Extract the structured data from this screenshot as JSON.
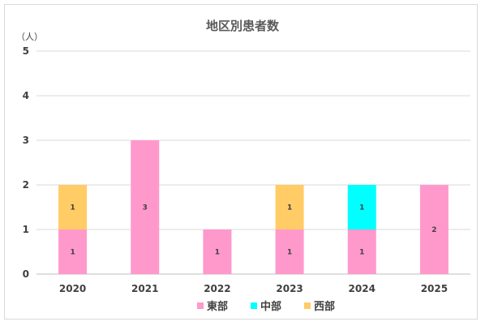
{
  "chart_data": {
    "type": "bar",
    "stacked": true,
    "title": "地区別患者数",
    "unit_label": "（人）",
    "categories": [
      "2020",
      "2021",
      "2022",
      "2023",
      "2024",
      "2025"
    ],
    "series": [
      {
        "name": "東部",
        "color": "#ff99cc",
        "values": [
          1,
          3,
          1,
          1,
          1,
          2
        ]
      },
      {
        "name": "中部",
        "color": "#00ffff",
        "values": [
          0,
          0,
          0,
          0,
          1,
          0
        ]
      },
      {
        "name": "西部",
        "color": "#ffcc66",
        "values": [
          1,
          0,
          0,
          1,
          0,
          0
        ]
      }
    ],
    "ylim": [
      0,
      5
    ],
    "yticks": [
      "0",
      "1",
      "2",
      "3",
      "4",
      "5"
    ],
    "grid": true,
    "legend_position": "bottom"
  }
}
